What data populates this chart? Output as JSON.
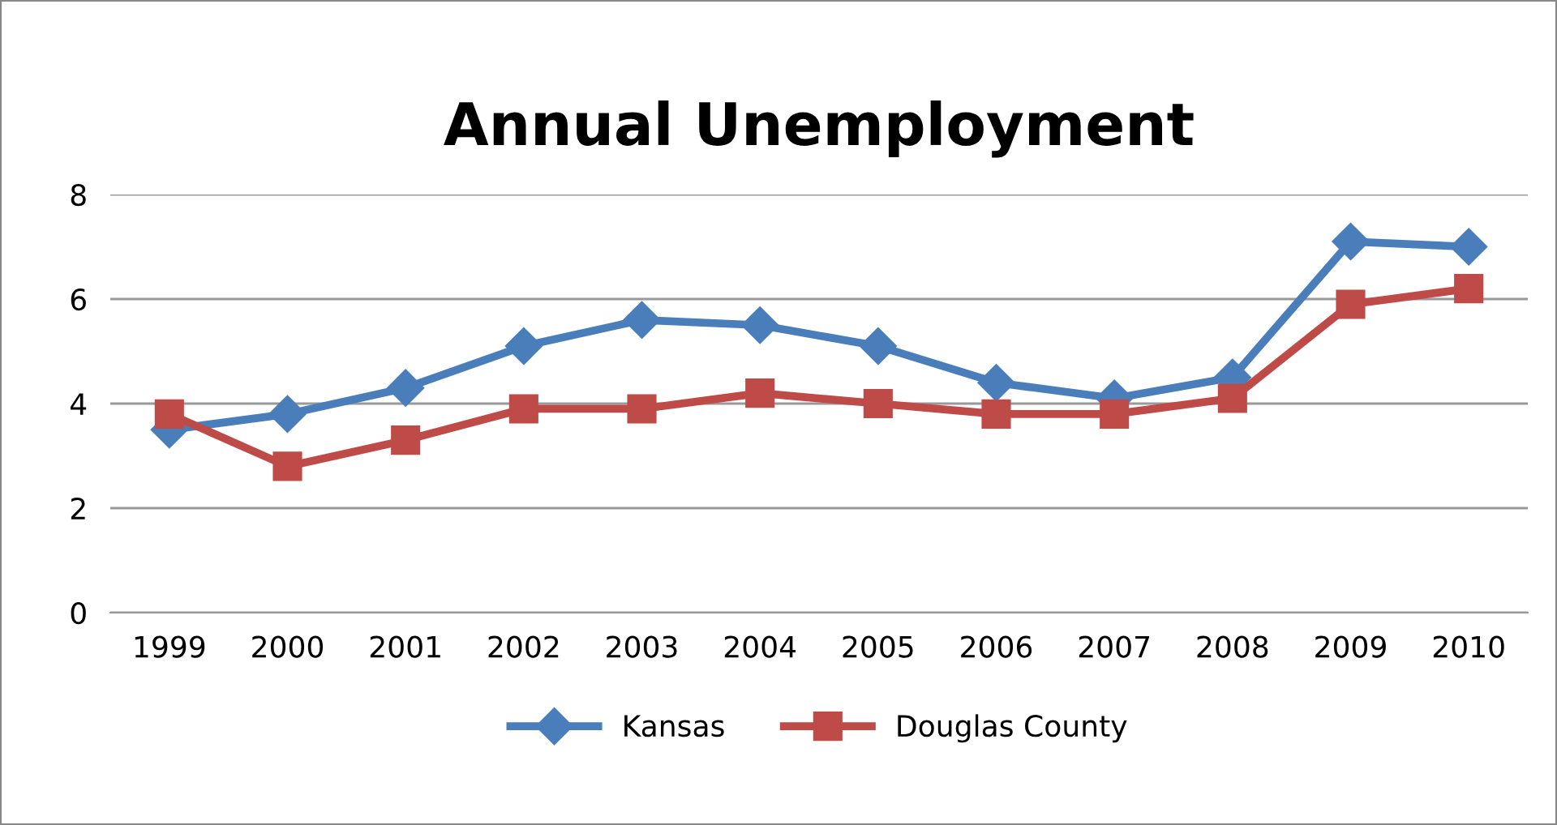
{
  "chart_data": {
    "type": "line",
    "title": "Annual Unemployment",
    "categories": [
      "1999",
      "2000",
      "2001",
      "2002",
      "2003",
      "2004",
      "2005",
      "2006",
      "2007",
      "2008",
      "2009",
      "2010"
    ],
    "series": [
      {
        "name": "Kansas",
        "color": "#4a7ebb",
        "marker": "diamond",
        "values": [
          3.5,
          3.8,
          4.3,
          5.1,
          5.6,
          5.5,
          5.1,
          4.4,
          4.1,
          4.5,
          7.1,
          7.0
        ]
      },
      {
        "name": "Douglas County",
        "color": "#be4b48",
        "marker": "square",
        "values": [
          3.8,
          2.8,
          3.3,
          3.9,
          3.9,
          4.2,
          4.0,
          3.8,
          3.8,
          4.1,
          5.9,
          6.2
        ]
      }
    ],
    "ylim": [
      0,
      8
    ],
    "yticks": [
      0,
      2,
      4,
      6,
      8
    ],
    "grid": "y",
    "legend": "bottom",
    "line_style": "solid"
  }
}
